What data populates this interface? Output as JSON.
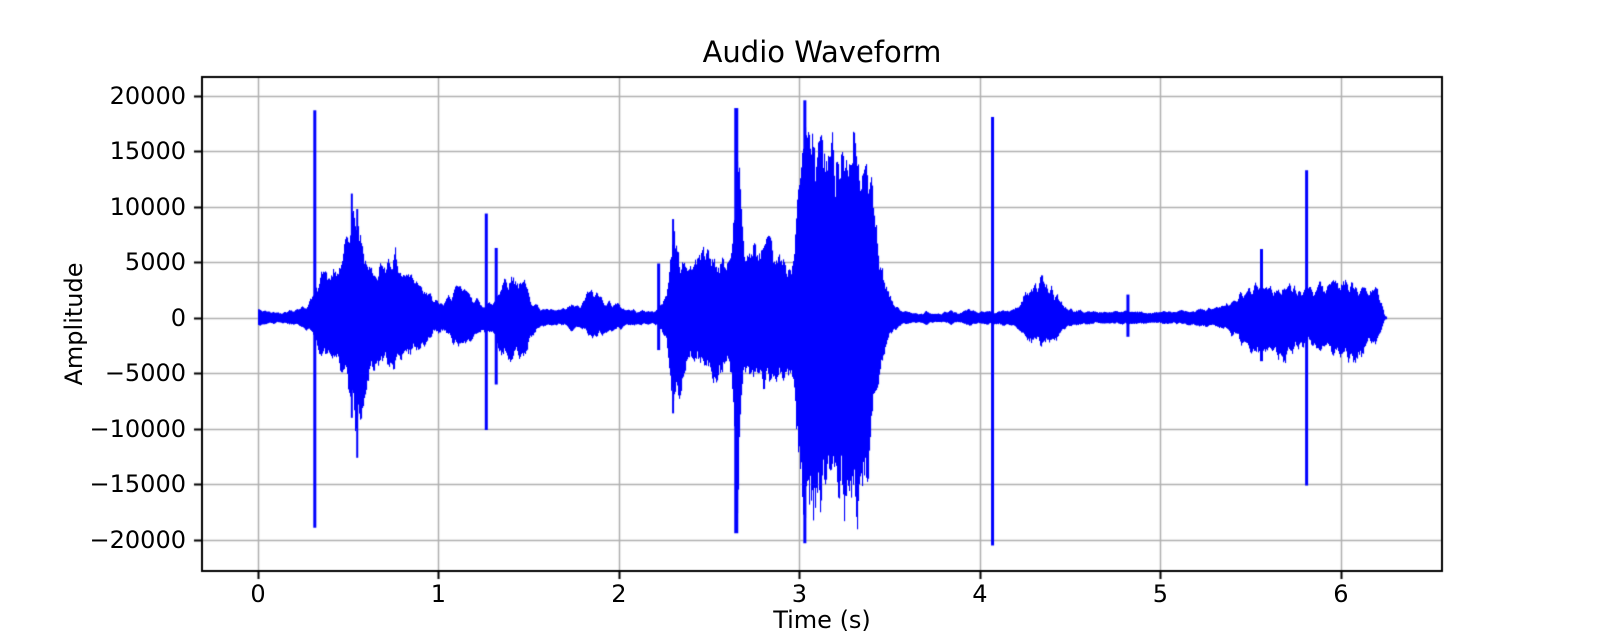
{
  "chart_data": {
    "type": "line",
    "title": "Audio Waveform",
    "xlabel": "Time (s)",
    "ylabel": "Amplitude",
    "line_color": "#0000ff",
    "background_color": "#ffffff",
    "grid": true,
    "grid_color": "#b0b0b0",
    "spine_color": "#000000",
    "xlim": [
      -0.31,
      6.56
    ],
    "ylim": [
      -22800,
      21700
    ],
    "xticks": [
      0,
      1,
      2,
      3,
      4,
      5,
      6
    ],
    "xtick_labels": [
      "0",
      "1",
      "2",
      "3",
      "4",
      "5",
      "6"
    ],
    "yticks": [
      -20000,
      -15000,
      -10000,
      -5000,
      0,
      5000,
      10000,
      15000,
      20000
    ],
    "ytick_labels": [
      "−20000",
      "−15000",
      "−10000",
      "−5000",
      "0",
      "5000",
      "10000",
      "15000",
      "20000"
    ],
    "duration_s": 6.25,
    "envelope": [
      [
        0.0,
        900,
        850
      ],
      [
        0.06,
        650,
        600
      ],
      [
        0.13,
        600,
        550
      ],
      [
        0.2,
        900,
        800
      ],
      [
        0.27,
        1300,
        1200
      ],
      [
        0.3,
        2200,
        2000
      ],
      [
        0.33,
        4200,
        3600
      ],
      [
        0.36,
        5000,
        4400
      ],
      [
        0.4,
        4300,
        3900
      ],
      [
        0.44,
        5000,
        4200
      ],
      [
        0.48,
        7000,
        6000
      ],
      [
        0.52,
        11200,
        9000
      ],
      [
        0.55,
        9800,
        12500
      ],
      [
        0.58,
        7600,
        9600
      ],
      [
        0.62,
        5200,
        6200
      ],
      [
        0.66,
        4600,
        5000
      ],
      [
        0.7,
        6000,
        4500
      ],
      [
        0.75,
        6900,
        5200
      ],
      [
        0.8,
        4800,
        4300
      ],
      [
        0.86,
        4600,
        3600
      ],
      [
        0.91,
        3600,
        3000
      ],
      [
        0.97,
        1800,
        1700
      ],
      [
        1.03,
        1500,
        1400
      ],
      [
        1.08,
        2900,
        2700
      ],
      [
        1.13,
        3100,
        2900
      ],
      [
        1.19,
        2200,
        2000
      ],
      [
        1.23,
        1500,
        1400
      ],
      [
        1.3,
        1500,
        1500
      ],
      [
        1.36,
        4200,
        4200
      ],
      [
        1.41,
        4300,
        4400
      ],
      [
        1.47,
        3800,
        4600
      ],
      [
        1.51,
        2000,
        2000
      ],
      [
        1.56,
        1000,
        950
      ],
      [
        1.63,
        800,
        750
      ],
      [
        1.7,
        900,
        850
      ],
      [
        1.74,
        1400,
        1300
      ],
      [
        1.78,
        1100,
        1000
      ],
      [
        1.83,
        2800,
        1900
      ],
      [
        1.88,
        2500,
        2000
      ],
      [
        1.93,
        1700,
        1600
      ],
      [
        1.98,
        1500,
        1400
      ],
      [
        2.04,
        900,
        850
      ],
      [
        2.1,
        800,
        750
      ],
      [
        2.16,
        700,
        650
      ],
      [
        2.21,
        800,
        700
      ],
      [
        2.26,
        2500,
        2200
      ],
      [
        2.3,
        8900,
        8600
      ],
      [
        2.34,
        6000,
        7000
      ],
      [
        2.38,
        5500,
        5000
      ],
      [
        2.43,
        6500,
        5000
      ],
      [
        2.49,
        7400,
        5300
      ],
      [
        2.54,
        6100,
        6400
      ],
      [
        2.59,
        5600,
        5200
      ],
      [
        2.62,
        7000,
        6000
      ],
      [
        2.64,
        14000,
        12000
      ],
      [
        2.655,
        18900,
        19000
      ],
      [
        2.67,
        13500,
        11000
      ],
      [
        2.69,
        7000,
        6200
      ],
      [
        2.73,
        7000,
        6000
      ],
      [
        2.78,
        7300,
        6300
      ],
      [
        2.83,
        7400,
        7000
      ],
      [
        2.88,
        6200,
        6300
      ],
      [
        2.93,
        5400,
        5700
      ],
      [
        2.97,
        7000,
        7500
      ],
      [
        3.0,
        15500,
        16500
      ],
      [
        3.03,
        19600,
        20300
      ],
      [
        3.06,
        19400,
        19000
      ],
      [
        3.09,
        17600,
        20400
      ],
      [
        3.12,
        19300,
        18600
      ],
      [
        3.15,
        16200,
        19500
      ],
      [
        3.18,
        17900,
        19000
      ],
      [
        3.21,
        19700,
        18200
      ],
      [
        3.24,
        18800,
        19800
      ],
      [
        3.27,
        16600,
        19000
      ],
      [
        3.3,
        19000,
        20000
      ],
      [
        3.33,
        16500,
        18600
      ],
      [
        3.36,
        15200,
        17000
      ],
      [
        3.39,
        14000,
        13500
      ],
      [
        3.42,
        9500,
        10000
      ],
      [
        3.45,
        5200,
        5200
      ],
      [
        3.48,
        3000,
        2900
      ],
      [
        3.52,
        1500,
        1500
      ],
      [
        3.56,
        800,
        750
      ],
      [
        3.62,
        500,
        480
      ],
      [
        3.68,
        480,
        450
      ],
      [
        3.7,
        900,
        800
      ],
      [
        3.72,
        500,
        470
      ],
      [
        3.78,
        450,
        430
      ],
      [
        3.84,
        750,
        700
      ],
      [
        3.88,
        500,
        470
      ],
      [
        3.94,
        900,
        850
      ],
      [
        3.99,
        600,
        560
      ],
      [
        4.04,
        700,
        650
      ],
      [
        4.1,
        700,
        650
      ],
      [
        4.16,
        800,
        750
      ],
      [
        4.22,
        1300,
        1200
      ],
      [
        4.26,
        3200,
        2500
      ],
      [
        4.3,
        3500,
        2700
      ],
      [
        4.34,
        3900,
        2800
      ],
      [
        4.38,
        3100,
        2700
      ],
      [
        4.42,
        2500,
        2300
      ],
      [
        4.46,
        1300,
        1200
      ],
      [
        4.51,
        800,
        750
      ],
      [
        4.58,
        700,
        650
      ],
      [
        4.66,
        650,
        600
      ],
      [
        4.74,
        650,
        600
      ],
      [
        4.8,
        700,
        650
      ],
      [
        4.86,
        650,
        600
      ],
      [
        4.94,
        600,
        580
      ],
      [
        5.02,
        650,
        600
      ],
      [
        5.1,
        700,
        650
      ],
      [
        5.18,
        800,
        750
      ],
      [
        5.26,
        950,
        900
      ],
      [
        5.33,
        1100,
        1050
      ],
      [
        5.39,
        1600,
        1800
      ],
      [
        5.44,
        2400,
        2700
      ],
      [
        5.49,
        3100,
        3600
      ],
      [
        5.53,
        3300,
        3900
      ],
      [
        5.58,
        3400,
        3300
      ],
      [
        5.63,
        3000,
        4100
      ],
      [
        5.68,
        3300,
        4400
      ],
      [
        5.72,
        3300,
        3500
      ],
      [
        5.76,
        3100,
        3300
      ],
      [
        5.79,
        2800,
        3000
      ],
      [
        5.83,
        2900,
        2800
      ],
      [
        5.88,
        3300,
        3100
      ],
      [
        5.93,
        3100,
        3400
      ],
      [
        5.98,
        3700,
        4000
      ],
      [
        6.03,
        4200,
        4400
      ],
      [
        6.07,
        3200,
        4400
      ],
      [
        6.11,
        2900,
        4200
      ],
      [
        6.15,
        2900,
        2900
      ],
      [
        6.19,
        3100,
        2700
      ],
      [
        6.22,
        1800,
        1500
      ],
      [
        6.24,
        300,
        250
      ],
      [
        6.25,
        120,
        100
      ]
    ],
    "spikes": [
      [
        0.315,
        18700,
        -18900,
        3
      ],
      [
        0.52,
        11200,
        -9000,
        2
      ],
      [
        0.55,
        9800,
        -12600,
        2
      ],
      [
        1.265,
        9400,
        -10100,
        3
      ],
      [
        1.32,
        6300,
        -6000,
        3
      ],
      [
        2.22,
        4900,
        -2900,
        3
      ],
      [
        2.3,
        8900,
        -8600,
        2
      ],
      [
        2.65,
        18900,
        -19400,
        4
      ],
      [
        3.03,
        19600,
        -20300,
        3
      ],
      [
        4.07,
        18100,
        -20500,
        3
      ],
      [
        4.82,
        2100,
        -1700,
        3
      ],
      [
        5.56,
        6200,
        -3900,
        3
      ],
      [
        5.81,
        13300,
        -15100,
        3
      ]
    ]
  }
}
